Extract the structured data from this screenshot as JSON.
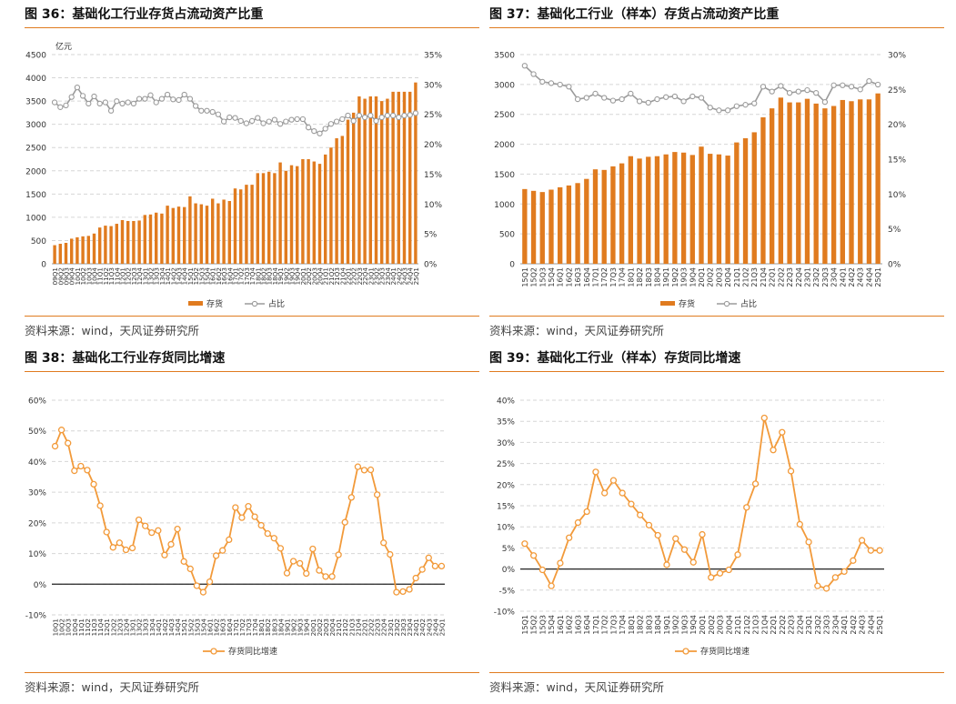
{
  "panels": [
    {
      "title": "图 36：基础化工行业存货占流动资产比重",
      "source": "资料来源：wind，天风证券研究所",
      "chart_data": {
        "type": "bar+line",
        "left_unit": "亿元",
        "ylim_left": [
          0,
          4500
        ],
        "yticks_left": [
          "0",
          "500",
          "1000",
          "1500",
          "2000",
          "2500",
          "3000",
          "3500",
          "4000",
          "4500"
        ],
        "ylim_right": [
          0,
          35
        ],
        "yticks_right": [
          "0%",
          "5%",
          "10%",
          "15%",
          "20%",
          "25%",
          "30%",
          "35%"
        ],
        "categories": [
          "09Q1",
          "09Q2",
          "09Q3",
          "09Q4",
          "10Q1",
          "10Q2",
          "10Q3",
          "10Q4",
          "11Q1",
          "11Q2",
          "11Q3",
          "11Q4",
          "12Q1",
          "12Q2",
          "12Q3",
          "12Q4",
          "13Q1",
          "13Q2",
          "13Q3",
          "13Q4",
          "14Q1",
          "14Q2",
          "14Q3",
          "14Q4",
          "15Q1",
          "15Q2",
          "15Q3",
          "15Q4",
          "16Q1",
          "16Q2",
          "16Q3",
          "16Q4",
          "17Q1",
          "17Q2",
          "17Q3",
          "17Q4",
          "18Q1",
          "18Q2",
          "18Q3",
          "18Q4",
          "19Q1",
          "19Q2",
          "19Q3",
          "19Q4",
          "20Q1",
          "20Q2",
          "20Q3",
          "20Q4",
          "21Q1",
          "21Q2",
          "21Q3",
          "21Q4",
          "22Q1",
          "22Q2",
          "22Q3",
          "22Q4",
          "23Q1",
          "23Q2",
          "23Q3",
          "23Q4",
          "24Q1",
          "24Q2",
          "24Q3",
          "24Q4",
          "25Q1"
        ],
        "series": [
          {
            "name": "存货",
            "kind": "bar",
            "axis": "left",
            "color": "#e07b1f",
            "values": [
              400,
              430,
              450,
              540,
              570,
              590,
              600,
              650,
              780,
              820,
              810,
              860,
              940,
              920,
              920,
              930,
              1050,
              1060,
              1100,
              1080,
              1250,
              1200,
              1230,
              1220,
              1450,
              1300,
              1280,
              1250,
              1400,
              1300,
              1380,
              1350,
              1620,
              1600,
              1700,
              1700,
              1950,
              1950,
              1980,
              1950,
              2180,
              2000,
              2120,
              2100,
              2250,
              2250,
              2200,
              2150,
              2350,
              2500,
              2700,
              2750,
              3100,
              3250,
              3600,
              3550,
              3600,
              3600,
              3500,
              3550,
              3700,
              3700,
              3700,
              3700,
              3900
            ]
          },
          {
            "name": "占比",
            "kind": "line",
            "axis": "right",
            "color": "#9b9b9b",
            "values": [
              27.0,
              26.2,
              26.5,
              27.9,
              29.5,
              28.1,
              26.8,
              28.0,
              26.8,
              27.0,
              25.6,
              27.2,
              26.8,
              27.0,
              26.8,
              27.6,
              27.6,
              28.2,
              27.0,
              27.6,
              28.3,
              27.5,
              27.4,
              28.3,
              27.6,
              26.4,
              25.6,
              25.6,
              25.4,
              25.0,
              23.8,
              24.5,
              24.4,
              23.9,
              23.5,
              23.9,
              24.4,
              23.5,
              23.8,
              24.1,
              23.4,
              23.8,
              24.1,
              24.2,
              24.2,
              22.8,
              22.2,
              21.8,
              22.6,
              23.4,
              23.8,
              24.2,
              24.8,
              23.9,
              24.8,
              24.5,
              24.8,
              23.9,
              24.5,
              24.8,
              24.8,
              24.5,
              24.8,
              24.9,
              25.2
            ]
          }
        ]
      }
    },
    {
      "title": "图 37：基础化工行业（样本）存货占流动资产比重",
      "source": "资料来源：wind，天风证券研究所",
      "chart_data": {
        "type": "bar+line",
        "left_unit": "",
        "ylim_left": [
          0,
          3500
        ],
        "yticks_left": [
          "0",
          "500",
          "1000",
          "1500",
          "2000",
          "2500",
          "3000",
          "3500"
        ],
        "ylim_right": [
          0,
          30
        ],
        "yticks_right": [
          "0%",
          "5%",
          "10%",
          "15%",
          "20%",
          "25%",
          "30%"
        ],
        "categories": [
          "15Q1",
          "15Q2",
          "15Q3",
          "15Q4",
          "16Q1",
          "16Q2",
          "16Q3",
          "16Q4",
          "17Q1",
          "17Q2",
          "17Q3",
          "17Q4",
          "18Q1",
          "18Q2",
          "18Q3",
          "18Q4",
          "19Q1",
          "19Q2",
          "19Q3",
          "19Q4",
          "20Q1",
          "20Q2",
          "20Q3",
          "20Q4",
          "21Q1",
          "21Q2",
          "21Q3",
          "21Q4",
          "22Q1",
          "22Q2",
          "22Q3",
          "22Q4",
          "23Q1",
          "23Q2",
          "23Q3",
          "23Q4",
          "24Q1",
          "24Q2",
          "24Q3",
          "24Q4",
          "25Q1"
        ],
        "series": [
          {
            "name": "存货",
            "kind": "bar",
            "axis": "left",
            "color": "#e07b1f",
            "values": [
              1250,
              1220,
              1200,
              1240,
              1280,
              1310,
              1350,
              1420,
              1580,
              1570,
              1630,
              1680,
              1800,
              1760,
              1790,
              1800,
              1830,
              1870,
              1860,
              1820,
              1960,
              1840,
              1830,
              1810,
              2030,
              2100,
              2200,
              2450,
              2600,
              2780,
              2700,
              2700,
              2760,
              2680,
              2600,
              2640,
              2740,
              2720,
              2750,
              2750,
              2850
            ]
          },
          {
            "name": "占比",
            "kind": "line",
            "axis": "right",
            "color": "#9b9b9b",
            "values": [
              28.4,
              27.2,
              26.1,
              25.9,
              25.7,
              25.4,
              23.6,
              23.8,
              24.4,
              23.8,
              23.4,
              23.6,
              24.4,
              23.3,
              23.1,
              23.6,
              23.9,
              24.0,
              23.3,
              24.0,
              23.8,
              22.4,
              22.0,
              22.0,
              22.6,
              22.8,
              23.0,
              25.4,
              24.7,
              25.5,
              24.5,
              24.7,
              24.9,
              24.5,
              23.2,
              25.6,
              25.6,
              25.4,
              25.0,
              26.2,
              25.7
            ]
          }
        ]
      }
    },
    {
      "title": "图 38：基础化工行业存货同比增速",
      "source": "资料来源：wind，天风证券研究所",
      "chart_data": {
        "type": "line",
        "ylim": [
          -10,
          60
        ],
        "yticks": [
          "-10%",
          "0%",
          "10%",
          "20%",
          "30%",
          "40%",
          "50%",
          "60%"
        ],
        "categories": [
          "10Q1",
          "10Q2",
          "10Q3",
          "10Q4",
          "11Q1",
          "11Q2",
          "11Q3",
          "11Q4",
          "12Q1",
          "12Q2",
          "12Q3",
          "12Q4",
          "13Q1",
          "13Q2",
          "13Q3",
          "13Q4",
          "14Q1",
          "14Q2",
          "14Q3",
          "14Q4",
          "15Q1",
          "15Q2",
          "15Q3",
          "15Q4",
          "16Q1",
          "16Q2",
          "16Q3",
          "16Q4",
          "17Q1",
          "17Q2",
          "17Q3",
          "17Q4",
          "18Q1",
          "18Q2",
          "18Q3",
          "18Q4",
          "19Q1",
          "19Q2",
          "19Q3",
          "19Q4",
          "20Q1",
          "20Q2",
          "20Q3",
          "20Q4",
          "21Q1",
          "21Q2",
          "21Q3",
          "21Q4",
          "22Q1",
          "22Q2",
          "22Q3",
          "22Q4",
          "23Q1",
          "23Q2",
          "23Q3",
          "23Q4",
          "24Q1",
          "24Q2",
          "24Q3",
          "24Q4",
          "25Q1"
        ],
        "series": [
          {
            "name": "存货同比增速",
            "color": "#f29a3a",
            "values": [
              45.0,
              50.3,
              46.0,
              37.0,
              38.5,
              37.2,
              32.6,
              25.6,
              17.0,
              12.0,
              13.5,
              11.2,
              11.8,
              21.0,
              19.0,
              16.8,
              17.5,
              9.5,
              13.0,
              18.0,
              7.4,
              5.0,
              -0.5,
              -2.6,
              0.8,
              9.3,
              11.0,
              14.5,
              25.0,
              21.7,
              25.4,
              22.0,
              19.2,
              16.5,
              15.0,
              11.7,
              3.6,
              7.5,
              6.8,
              3.5,
              11.5,
              4.5,
              2.5,
              2.5,
              9.6,
              20.2,
              28.3,
              38.3,
              37.2,
              37.3,
              29.2,
              13.5,
              9.7,
              -2.6,
              -2.4,
              -1.7,
              2.0,
              4.8,
              8.6,
              5.9,
              5.9
            ]
          }
        ]
      }
    },
    {
      "title": "图 39：基础化工行业（样本）存货同比增速",
      "source": "资料来源：wind，天风证券研究所",
      "chart_data": {
        "type": "line",
        "ylim": [
          -10,
          40
        ],
        "yticks": [
          "-10%",
          "-5%",
          "0%",
          "5%",
          "10%",
          "15%",
          "20%",
          "25%",
          "30%",
          "35%",
          "40%"
        ],
        "categories": [
          "15Q1",
          "15Q2",
          "15Q3",
          "15Q4",
          "16Q1",
          "16Q2",
          "16Q3",
          "16Q4",
          "17Q1",
          "17Q2",
          "17Q3",
          "17Q4",
          "18Q1",
          "18Q2",
          "18Q3",
          "18Q4",
          "19Q1",
          "19Q2",
          "19Q3",
          "19Q4",
          "20Q1",
          "20Q2",
          "20Q3",
          "20Q4",
          "21Q1",
          "21Q2",
          "21Q3",
          "21Q4",
          "22Q1",
          "22Q2",
          "22Q3",
          "22Q4",
          "23Q1",
          "23Q2",
          "23Q3",
          "23Q4",
          "24Q1",
          "24Q2",
          "24Q3",
          "24Q4",
          "25Q1"
        ],
        "series": [
          {
            "name": "存货同比增速",
            "color": "#f29a3a",
            "values": [
              6.0,
              3.2,
              -0.2,
              -4.0,
              1.4,
              7.4,
              11.0,
              13.6,
              23.0,
              18.0,
              21.0,
              18.0,
              15.4,
              12.8,
              10.4,
              8.0,
              1.0,
              7.2,
              4.6,
              1.6,
              8.2,
              -2.0,
              -1.0,
              -0.2,
              3.4,
              14.6,
              20.2,
              35.8,
              28.2,
              32.4,
              23.2,
              10.6,
              6.4,
              -4.0,
              -4.6,
              -2.0,
              -0.6,
              2.0,
              6.8,
              4.4,
              4.4
            ]
          }
        ]
      }
    }
  ]
}
